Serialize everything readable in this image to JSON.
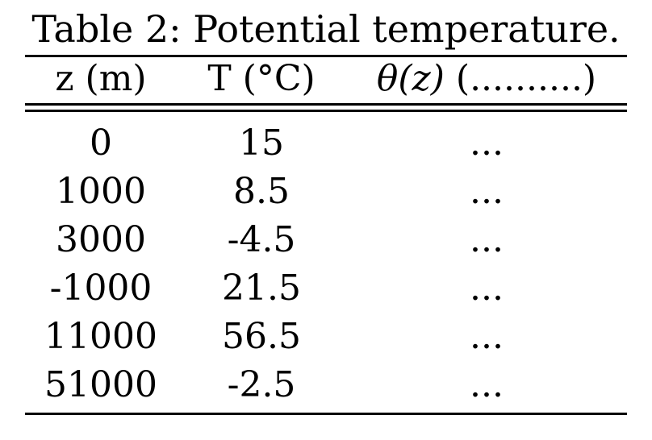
{
  "caption": "Table 2: Potential temperature.",
  "table": {
    "headers": {
      "z": "z (m)",
      "t": "T (°C)",
      "theta_symbol": "θ(z)",
      "theta_units": "(..........)"
    },
    "rows": [
      {
        "z": "0",
        "t": "15",
        "theta": "..."
      },
      {
        "z": "1000",
        "t": "8.5",
        "theta": "..."
      },
      {
        "z": "3000",
        "t": "-4.5",
        "theta": "..."
      },
      {
        "z": "-1000",
        "t": "21.5",
        "theta": "..."
      },
      {
        "z": "11000",
        "t": "56.5",
        "theta": "..."
      },
      {
        "z": "51000",
        "t": "-2.5",
        "theta": "..."
      }
    ]
  }
}
